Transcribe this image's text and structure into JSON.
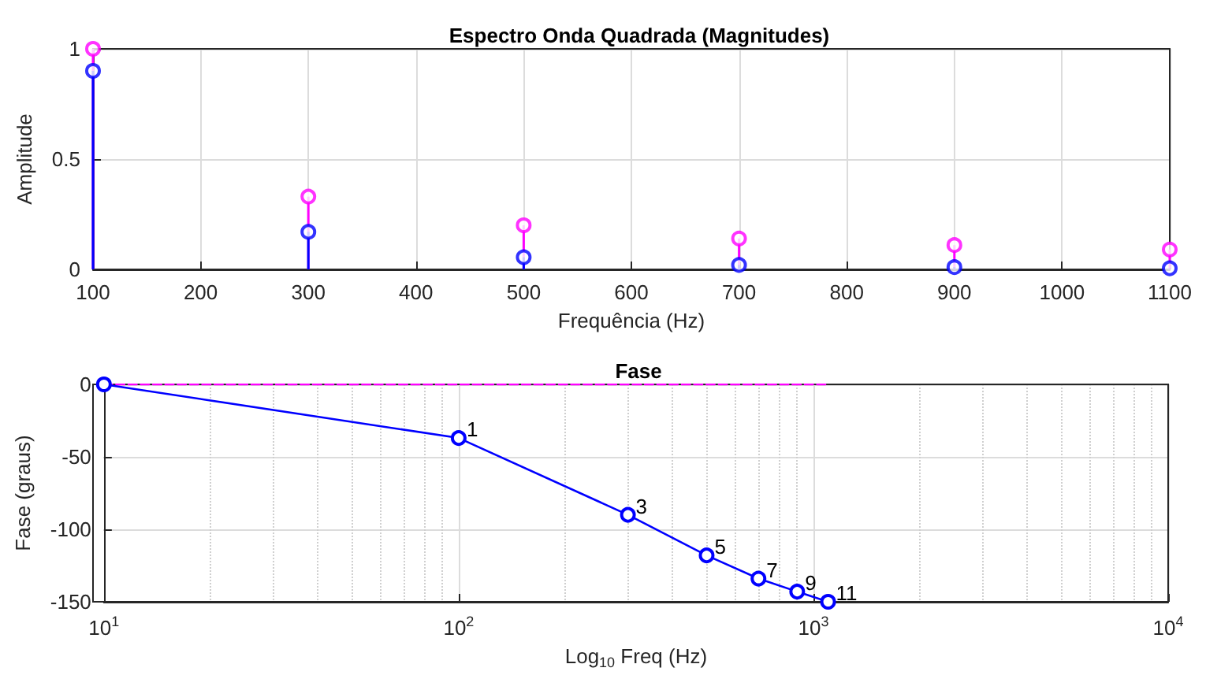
{
  "chart_data": [
    {
      "type": "lollipop",
      "title": "Espectro Onda Quadrada (Magnitudes)",
      "xlabel": "Frequência (Hz)",
      "ylabel": "Amplitude",
      "x": [
        100,
        300,
        500,
        700,
        900,
        1100
      ],
      "series": [
        {
          "color": "#ff00ff",
          "values": [
            1,
            0.33,
            0.2,
            0.14,
            0.11,
            0.09
          ]
        },
        {
          "color": "#0000ff",
          "values": [
            0.9,
            0.17,
            0.055,
            0.02,
            0.01,
            0.005
          ]
        }
      ],
      "xlim": [
        100,
        1100
      ],
      "xticks": [
        100,
        200,
        300,
        400,
        500,
        600,
        700,
        800,
        900,
        1000,
        1100
      ],
      "ylim": [
        0,
        1
      ],
      "yticks": [
        0,
        0.5,
        1
      ],
      "grid": true,
      "marker": "circle"
    },
    {
      "type": "line",
      "title": "Fase",
      "xlabel": "Log$_{10}$ Freq (Hz)",
      "ylabel": "Fase (graus)",
      "series": [
        {
          "color": "#ff00ff",
          "x": [
            10,
            100,
            300,
            500,
            700,
            900,
            1100
          ],
          "values": [
            0,
            0,
            0,
            0,
            0,
            0,
            0
          ],
          "line_style": "dashed",
          "marker": "none"
        },
        {
          "color": "#0000ff",
          "x": [
            10,
            100,
            300,
            500,
            700,
            900,
            1100
          ],
          "values": [
            0,
            -37,
            -90,
            -118,
            -134,
            -143,
            -150
          ],
          "line_style": "solid",
          "marker": "circle"
        }
      ],
      "annotations": [
        {
          "text": "1",
          "x": 100,
          "y": -37
        },
        {
          "text": "3",
          "x": 300,
          "y": -90
        },
        {
          "text": "5",
          "x": 500,
          "y": -118
        },
        {
          "text": "7",
          "x": 700,
          "y": -134
        },
        {
          "text": "9",
          "x": 900,
          "y": -143
        },
        {
          "text": "11",
          "x": 1100,
          "y": -150
        }
      ],
      "log": "x",
      "xlim": [
        10,
        10000
      ],
      "xticks": [
        {
          "value": 10,
          "label": "10$^{1}$"
        },
        {
          "value": 100,
          "label": "10$^{2}$"
        },
        {
          "value": 1000,
          "label": "10$^{3}$"
        },
        {
          "value": 10000,
          "label": "10$^{4}$"
        }
      ],
      "ylim": [
        -150,
        0
      ],
      "yticks": [
        -150,
        -100,
        -50,
        0
      ],
      "grid": true
    }
  ]
}
